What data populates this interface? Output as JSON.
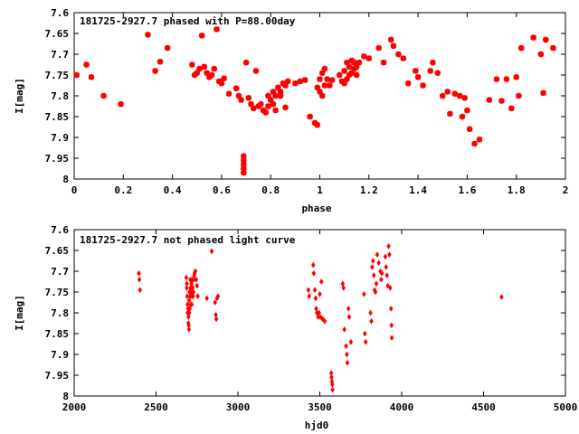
{
  "chart_data": [
    {
      "type": "scatter",
      "title": "181725-2927.7 phased with P=88.00day",
      "xlabel": "phase",
      "ylabel": "I[mag]",
      "xlim": [
        0,
        2
      ],
      "ylim": [
        7.6,
        8
      ],
      "y_inverted": true,
      "xticks": [
        0,
        0.2,
        0.4,
        0.6,
        0.8,
        1,
        1.2,
        1.4,
        1.6,
        1.8,
        2
      ],
      "yticks": [
        7.6,
        7.65,
        7.7,
        7.75,
        7.8,
        7.85,
        7.9,
        7.95,
        8
      ],
      "xtick_labels": [
        "0",
        "0.2",
        "0.4",
        "0.6",
        "0.8",
        "1",
        "1.2",
        "1.4",
        "1.6",
        "1.8",
        "2"
      ],
      "ytick_labels": [
        "7.6",
        "7.65",
        "7.7",
        "7.75",
        "7.8",
        "7.85",
        "7.9",
        "7.95",
        "8"
      ],
      "grid": false,
      "marker": "star",
      "color": "#ff0000",
      "points": [
        [
          0.01,
          7.75
        ],
        [
          0.05,
          7.725
        ],
        [
          0.07,
          7.755
        ],
        [
          0.12,
          7.8
        ],
        [
          0.19,
          7.82
        ],
        [
          0.3,
          7.653
        ],
        [
          0.33,
          7.74
        ],
        [
          0.35,
          7.718
        ],
        [
          0.38,
          7.685
        ],
        [
          0.48,
          7.725
        ],
        [
          0.49,
          7.75
        ],
        [
          0.5,
          7.745
        ],
        [
          0.51,
          7.735
        ],
        [
          0.52,
          7.655
        ],
        [
          0.53,
          7.73
        ],
        [
          0.54,
          7.745
        ],
        [
          0.55,
          7.755
        ],
        [
          0.56,
          7.75
        ],
        [
          0.57,
          7.735
        ],
        [
          0.58,
          7.64
        ],
        [
          0.59,
          7.765
        ],
        [
          0.6,
          7.77
        ],
        [
          0.61,
          7.758
        ],
        [
          0.63,
          7.795
        ],
        [
          0.66,
          7.782
        ],
        [
          0.67,
          7.8
        ],
        [
          0.68,
          7.81
        ],
        [
          0.69,
          7.945
        ],
        [
          0.69,
          7.955
        ],
        [
          0.69,
          7.965
        ],
        [
          0.69,
          7.975
        ],
        [
          0.69,
          7.985
        ],
        [
          0.7,
          7.72
        ],
        [
          0.71,
          7.805
        ],
        [
          0.72,
          7.82
        ],
        [
          0.73,
          7.83
        ],
        [
          0.74,
          7.74
        ],
        [
          0.75,
          7.825
        ],
        [
          0.76,
          7.82
        ],
        [
          0.77,
          7.835
        ],
        [
          0.78,
          7.84
        ],
        [
          0.79,
          7.825
        ],
        [
          0.79,
          7.8
        ],
        [
          0.8,
          7.81
        ],
        [
          0.81,
          7.79
        ],
        [
          0.81,
          7.82
        ],
        [
          0.82,
          7.8
        ],
        [
          0.82,
          7.835
        ],
        [
          0.83,
          7.78
        ],
        [
          0.84,
          7.79
        ],
        [
          0.84,
          7.8
        ],
        [
          0.85,
          7.77
        ],
        [
          0.86,
          7.775
        ],
        [
          0.86,
          7.828
        ],
        [
          0.87,
          7.765
        ],
        [
          0.9,
          7.77
        ],
        [
          0.92,
          7.765
        ],
        [
          0.94,
          7.762
        ],
        [
          0.96,
          7.85
        ],
        [
          0.98,
          7.865
        ],
        [
          0.99,
          7.87
        ],
        [
          0.99,
          7.78
        ],
        [
          1.0,
          7.79
        ],
        [
          1.0,
          7.76
        ],
        [
          1.01,
          7.745
        ],
        [
          1.01,
          7.8
        ],
        [
          1.02,
          7.775
        ],
        [
          1.02,
          7.735
        ],
        [
          1.03,
          7.76
        ],
        [
          1.04,
          7.775
        ],
        [
          1.05,
          7.762
        ],
        [
          1.08,
          7.75
        ],
        [
          1.09,
          7.765
        ],
        [
          1.1,
          7.74
        ],
        [
          1.1,
          7.77
        ],
        [
          1.11,
          7.72
        ],
        [
          1.11,
          7.76
        ],
        [
          1.12,
          7.75
        ],
        [
          1.12,
          7.73
        ],
        [
          1.13,
          7.745
        ],
        [
          1.13,
          7.715
        ],
        [
          1.14,
          7.72
        ],
        [
          1.14,
          7.735
        ],
        [
          1.15,
          7.73
        ],
        [
          1.15,
          7.75
        ],
        [
          1.16,
          7.72
        ],
        [
          1.18,
          7.705
        ],
        [
          1.2,
          7.71
        ],
        [
          1.24,
          7.685
        ],
        [
          1.26,
          7.72
        ],
        [
          1.29,
          7.665
        ],
        [
          1.3,
          7.68
        ],
        [
          1.32,
          7.7
        ],
        [
          1.34,
          7.71
        ],
        [
          1.36,
          7.77
        ],
        [
          1.39,
          7.74
        ],
        [
          1.4,
          7.755
        ],
        [
          1.42,
          7.775
        ],
        [
          1.45,
          7.74
        ],
        [
          1.46,
          7.72
        ],
        [
          1.48,
          7.745
        ],
        [
          1.5,
          7.8
        ],
        [
          1.52,
          7.79
        ],
        [
          1.53,
          7.843
        ],
        [
          1.55,
          7.795
        ],
        [
          1.57,
          7.8
        ],
        [
          1.58,
          7.85
        ],
        [
          1.59,
          7.805
        ],
        [
          1.6,
          7.835
        ],
        [
          1.61,
          7.88
        ],
        [
          1.63,
          7.915
        ],
        [
          1.65,
          7.905
        ],
        [
          1.69,
          7.81
        ],
        [
          1.72,
          7.76
        ],
        [
          1.74,
          7.812
        ],
        [
          1.76,
          7.76
        ],
        [
          1.78,
          7.83
        ],
        [
          1.8,
          7.755
        ],
        [
          1.81,
          7.8
        ],
        [
          1.82,
          7.685
        ],
        [
          1.87,
          7.66
        ],
        [
          1.9,
          7.7
        ],
        [
          1.91,
          7.793
        ],
        [
          1.92,
          7.665
        ],
        [
          1.95,
          7.685
        ]
      ]
    },
    {
      "type": "scatter",
      "title": "181725-2927.7 not phased light curve",
      "xlabel": "hjd0",
      "ylabel": "I[mag]",
      "xlim": [
        2000,
        5000
      ],
      "ylim": [
        7.6,
        8
      ],
      "y_inverted": true,
      "xticks": [
        2000,
        2500,
        3000,
        3500,
        4000,
        4500,
        5000
      ],
      "yticks": [
        7.6,
        7.65,
        7.7,
        7.75,
        7.8,
        7.85,
        7.9,
        7.95,
        8
      ],
      "xtick_labels": [
        "2000",
        "2500",
        "3000",
        "3500",
        "4000",
        "4500",
        "5000"
      ],
      "ytick_labels": [
        "7.6",
        "7.65",
        "7.7",
        "7.75",
        "7.8",
        "7.85",
        "7.9",
        "7.95",
        "8"
      ],
      "grid": false,
      "marker": "diamond",
      "color": "#ff0000",
      "points": [
        [
          2395,
          7.705
        ],
        [
          2398,
          7.72
        ],
        [
          2402,
          7.745
        ],
        [
          2685,
          7.715
        ],
        [
          2687,
          7.74
        ],
        [
          2688,
          7.73
        ],
        [
          2690,
          7.76
        ],
        [
          2692,
          7.78
        ],
        [
          2693,
          7.8
        ],
        [
          2695,
          7.79
        ],
        [
          2697,
          7.825
        ],
        [
          2698,
          7.81
        ],
        [
          2700,
          7.83
        ],
        [
          2701,
          7.84
        ],
        [
          2702,
          7.77
        ],
        [
          2703,
          7.8
        ],
        [
          2704,
          7.75
        ],
        [
          2706,
          7.79
        ],
        [
          2708,
          7.76
        ],
        [
          2709,
          7.72
        ],
        [
          2711,
          7.74
        ],
        [
          2712,
          7.78
        ],
        [
          2714,
          7.75
        ],
        [
          2716,
          7.73
        ],
        [
          2718,
          7.78
        ],
        [
          2720,
          7.76
        ],
        [
          2722,
          7.72
        ],
        [
          2724,
          7.74
        ],
        [
          2726,
          7.76
        ],
        [
          2728,
          7.75
        ],
        [
          2730,
          7.72
        ],
        [
          2733,
          7.71
        ],
        [
          2735,
          7.705
        ],
        [
          2740,
          7.7
        ],
        [
          2745,
          7.72
        ],
        [
          2750,
          7.735
        ],
        [
          2755,
          7.76
        ],
        [
          2810,
          7.765
        ],
        [
          2840,
          7.652
        ],
        [
          2860,
          7.775
        ],
        [
          2865,
          7.805
        ],
        [
          2868,
          7.815
        ],
        [
          2872,
          7.765
        ],
        [
          2878,
          7.76
        ],
        [
          3430,
          7.745
        ],
        [
          3435,
          7.76
        ],
        [
          3460,
          7.685
        ],
        [
          3463,
          7.705
        ],
        [
          3470,
          7.745
        ],
        [
          3475,
          7.765
        ],
        [
          3478,
          7.79
        ],
        [
          3482,
          7.8
        ],
        [
          3490,
          7.81
        ],
        [
          3495,
          7.8
        ],
        [
          3500,
          7.755
        ],
        [
          3505,
          7.81
        ],
        [
          3510,
          7.725
        ],
        [
          3518,
          7.815
        ],
        [
          3530,
          7.82
        ],
        [
          3570,
          7.945
        ],
        [
          3572,
          7.955
        ],
        [
          3574,
          7.965
        ],
        [
          3576,
          7.972
        ],
        [
          3578,
          7.985
        ],
        [
          3640,
          7.73
        ],
        [
          3645,
          7.74
        ],
        [
          3650,
          7.84
        ],
        [
          3660,
          7.88
        ],
        [
          3665,
          7.9
        ],
        [
          3668,
          7.92
        ],
        [
          3675,
          7.79
        ],
        [
          3680,
          7.81
        ],
        [
          3690,
          7.87
        ],
        [
          3770,
          7.755
        ],
        [
          3775,
          7.85
        ],
        [
          3780,
          7.87
        ],
        [
          3810,
          7.8
        ],
        [
          3815,
          7.82
        ],
        [
          3820,
          7.69
        ],
        [
          3825,
          7.675
        ],
        [
          3830,
          7.71
        ],
        [
          3835,
          7.745
        ],
        [
          3840,
          7.75
        ],
        [
          3845,
          7.73
        ],
        [
          3850,
          7.66
        ],
        [
          3860,
          7.68
        ],
        [
          3870,
          7.7
        ],
        [
          3875,
          7.72
        ],
        [
          3880,
          7.705
        ],
        [
          3900,
          7.665
        ],
        [
          3905,
          7.69
        ],
        [
          3910,
          7.71
        ],
        [
          3915,
          7.735
        ],
        [
          3920,
          7.64
        ],
        [
          3925,
          7.66
        ],
        [
          3930,
          7.74
        ],
        [
          3935,
          7.79
        ],
        [
          3938,
          7.83
        ],
        [
          3940,
          7.86
        ],
        [
          4610,
          7.762
        ]
      ]
    }
  ]
}
